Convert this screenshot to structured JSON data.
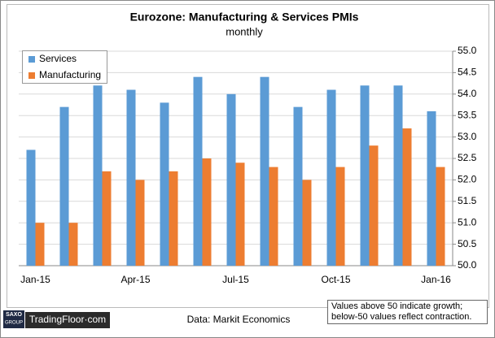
{
  "chart_data": {
    "type": "bar",
    "title": "Eurozone: Manufacturing & Services PMIs",
    "subtitle": "monthly",
    "categories": [
      "Jan-15",
      null,
      null,
      "Apr-15",
      null,
      null,
      "Jul-15",
      null,
      null,
      "Oct-15",
      null,
      null,
      "Jan-16"
    ],
    "series": [
      {
        "name": "Services",
        "color": "#5b9bd5",
        "values": [
          52.7,
          53.7,
          54.2,
          54.1,
          53.8,
          54.4,
          54.0,
          54.4,
          53.7,
          54.1,
          54.2,
          54.2,
          53.6
        ]
      },
      {
        "name": "Manufacturing",
        "color": "#ed7d31",
        "values": [
          51.0,
          51.0,
          52.2,
          52.0,
          52.2,
          52.5,
          52.4,
          52.3,
          52.0,
          52.3,
          52.8,
          53.2,
          52.3
        ]
      }
    ],
    "ylim": [
      50,
      55
    ],
    "yticks": [
      {
        "value": 50,
        "label": "50.0"
      },
      {
        "value": 50.5,
        "label": "50.5"
      },
      {
        "value": 51,
        "label": "51.0"
      },
      {
        "value": 51.5,
        "label": "51.5"
      },
      {
        "value": 52,
        "label": "52.0"
      },
      {
        "value": 52.5,
        "label": "52.5"
      },
      {
        "value": 53,
        "label": "53.0"
      },
      {
        "value": 53.5,
        "label": "53.5"
      },
      {
        "value": 54,
        "label": "54.0"
      },
      {
        "value": 54.5,
        "label": "54.5"
      },
      {
        "value": 55,
        "label": "55.0"
      }
    ],
    "grid": true,
    "legend": "upper-left"
  },
  "footer": {
    "source": "Data: Markit Economics",
    "note": [
      "Values above 50 indicate growth;",
      "below-50 values reflect contraction."
    ],
    "logo": [
      "SAXO",
      "GROUP"
    ],
    "brand": "TradingFloor·com"
  }
}
